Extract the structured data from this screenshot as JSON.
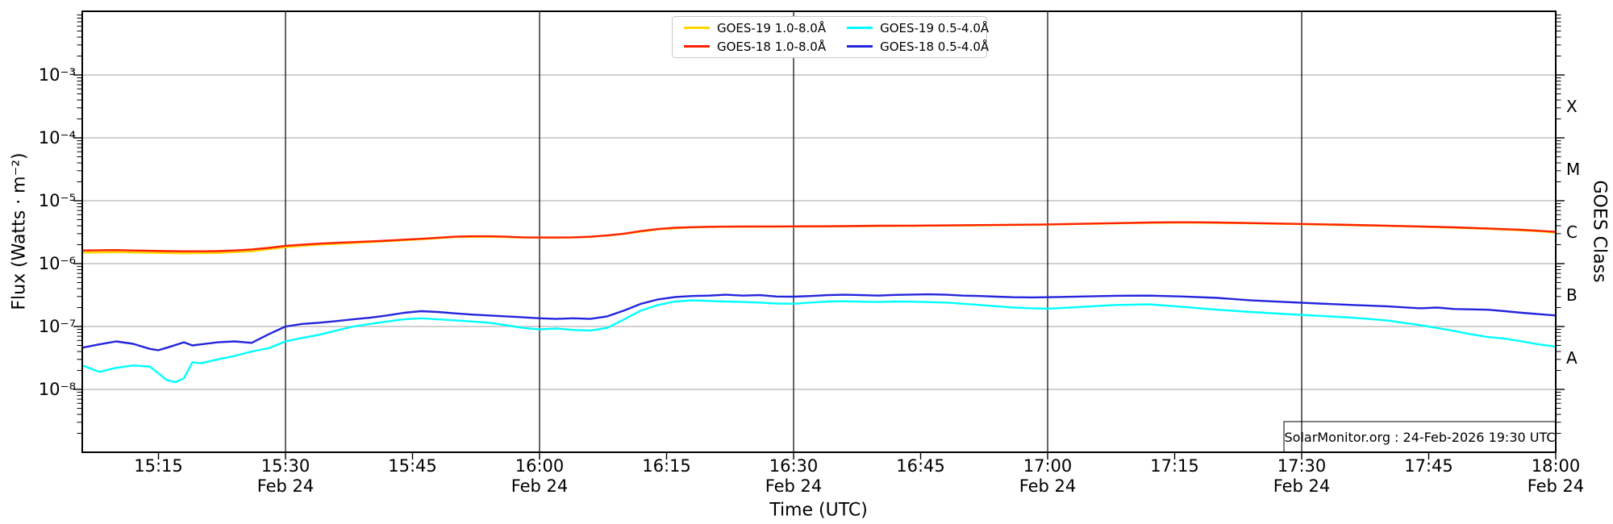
{
  "page": {
    "credit": "SolarMonitor.org : 24-Feb-2026 19:30 UTC"
  },
  "chart_data": {
    "type": "line",
    "title": "",
    "xlabel": "Time (UTC)",
    "ylabel": "Flux (Watts · m⁻²)",
    "right_axis_label": "GOES Class",
    "x_axis": {
      "start": "15:06",
      "end": "18:00",
      "tick_labels": [
        "15:15",
        "15:30",
        "15:45",
        "16:00",
        "16:15",
        "16:30",
        "16:45",
        "17:00",
        "17:15",
        "17:30",
        "17:45",
        "18:00"
      ],
      "date_label": "Feb 24",
      "date_label_under": [
        "15:30",
        "16:00",
        "16:30",
        "17:00",
        "17:30",
        "18:00"
      ],
      "vertical_lines": [
        "15:30",
        "16:00",
        "16:30",
        "17:00",
        "17:30"
      ]
    },
    "y_axis": {
      "scale": "log",
      "min": 1e-09,
      "max": 0.01,
      "tick_values": [
        0.001,
        0.0001,
        1e-05,
        1e-06,
        1e-07,
        1e-08
      ],
      "tick_labels": [
        "10⁻³",
        "10⁻⁴",
        "10⁻⁵",
        "10⁻⁶",
        "10⁻⁷",
        "10⁻⁸"
      ],
      "gridlines": true
    },
    "goes_classes": [
      {
        "letter": "X",
        "center_flux": 0.000316
      },
      {
        "letter": "M",
        "center_flux": 3.16e-05
      },
      {
        "letter": "C",
        "center_flux": 3.16e-06
      },
      {
        "letter": "B",
        "center_flux": 3.16e-07
      },
      {
        "letter": "A",
        "center_flux": 3.16e-08
      }
    ],
    "grid_color": "#b4b4b4",
    "series": [
      {
        "name": "GOES-19 1.0-8.0Å",
        "color": "#ffd400",
        "points": [
          [
            "15:06",
            1.5e-06
          ],
          [
            "15:10",
            1.52e-06
          ],
          [
            "15:14",
            1.49e-06
          ],
          [
            "15:18",
            1.46e-06
          ],
          [
            "15:22",
            1.48e-06
          ],
          [
            "15:26",
            1.57e-06
          ],
          [
            "15:30",
            1.83e-06
          ],
          [
            "15:34",
            2e-06
          ],
          [
            "15:38",
            2.13e-06
          ],
          [
            "15:42",
            2.27e-06
          ],
          [
            "15:46",
            2.44e-06
          ],
          [
            "15:50",
            2.65e-06
          ],
          [
            "15:54",
            2.69e-06
          ],
          [
            "15:58",
            2.6e-06
          ],
          [
            "16:02",
            2.58e-06
          ],
          [
            "16:06",
            2.66e-06
          ],
          [
            "16:10",
            2.97e-06
          ],
          [
            "16:14",
            3.52e-06
          ],
          [
            "16:18",
            3.77e-06
          ],
          [
            "16:22",
            3.85e-06
          ],
          [
            "16:26",
            3.87e-06
          ],
          [
            "16:30",
            3.88e-06
          ],
          [
            "16:34",
            3.9e-06
          ],
          [
            "16:38",
            3.94e-06
          ],
          [
            "16:42",
            3.98e-06
          ],
          [
            "16:46",
            4e-06
          ],
          [
            "16:50",
            4.04e-06
          ],
          [
            "16:54",
            4.09e-06
          ],
          [
            "16:58",
            4.14e-06
          ],
          [
            "17:02",
            4.22e-06
          ],
          [
            "17:06",
            4.32e-06
          ],
          [
            "17:10",
            4.42e-06
          ],
          [
            "17:14",
            4.48e-06
          ],
          [
            "17:18",
            4.48e-06
          ],
          [
            "17:22",
            4.42e-06
          ],
          [
            "17:26",
            4.33e-06
          ],
          [
            "17:30",
            4.23e-06
          ],
          [
            "17:34",
            4.13e-06
          ],
          [
            "17:38",
            4.03e-06
          ],
          [
            "17:42",
            3.92e-06
          ],
          [
            "17:46",
            3.8e-06
          ],
          [
            "17:50",
            3.64e-06
          ],
          [
            "17:54",
            3.48e-06
          ],
          [
            "17:58",
            3.28e-06
          ],
          [
            "18:00",
            3.12e-06
          ]
        ]
      },
      {
        "name": "GOES-18 1.0-8.0Å",
        "color": "#ff2200",
        "points": [
          [
            "15:06",
            1.62e-06
          ],
          [
            "15:08",
            1.63e-06
          ],
          [
            "15:10",
            1.64e-06
          ],
          [
            "15:12",
            1.62e-06
          ],
          [
            "15:14",
            1.6e-06
          ],
          [
            "15:16",
            1.58e-06
          ],
          [
            "15:18",
            1.57e-06
          ],
          [
            "15:20",
            1.57e-06
          ],
          [
            "15:22",
            1.58e-06
          ],
          [
            "15:24",
            1.62e-06
          ],
          [
            "15:26",
            1.68e-06
          ],
          [
            "15:28",
            1.78e-06
          ],
          [
            "15:30",
            1.92e-06
          ],
          [
            "15:32",
            2e-06
          ],
          [
            "15:34",
            2.08e-06
          ],
          [
            "15:36",
            2.14e-06
          ],
          [
            "15:38",
            2.2e-06
          ],
          [
            "15:40",
            2.26e-06
          ],
          [
            "15:42",
            2.32e-06
          ],
          [
            "15:44",
            2.4e-06
          ],
          [
            "15:46",
            2.48e-06
          ],
          [
            "15:48",
            2.58e-06
          ],
          [
            "15:50",
            2.68e-06
          ],
          [
            "15:52",
            2.72e-06
          ],
          [
            "15:54",
            2.72e-06
          ],
          [
            "15:56",
            2.68e-06
          ],
          [
            "15:58",
            2.62e-06
          ],
          [
            "16:00",
            2.6e-06
          ],
          [
            "16:02",
            2.6e-06
          ],
          [
            "16:04",
            2.62e-06
          ],
          [
            "16:06",
            2.68e-06
          ],
          [
            "16:08",
            2.8e-06
          ],
          [
            "16:10",
            3e-06
          ],
          [
            "16:12",
            3.3e-06
          ],
          [
            "16:14",
            3.55e-06
          ],
          [
            "16:16",
            3.72e-06
          ],
          [
            "16:18",
            3.8e-06
          ],
          [
            "16:20",
            3.85e-06
          ],
          [
            "16:24",
            3.9e-06
          ],
          [
            "16:28",
            3.9e-06
          ],
          [
            "16:32",
            3.92e-06
          ],
          [
            "16:36",
            3.95e-06
          ],
          [
            "16:40",
            4e-06
          ],
          [
            "16:44",
            4.02e-06
          ],
          [
            "16:48",
            4.05e-06
          ],
          [
            "16:52",
            4.1e-06
          ],
          [
            "16:56",
            4.15e-06
          ],
          [
            "17:00",
            4.2e-06
          ],
          [
            "17:04",
            4.3e-06
          ],
          [
            "17:08",
            4.4e-06
          ],
          [
            "17:12",
            4.5e-06
          ],
          [
            "17:16",
            4.55e-06
          ],
          [
            "17:20",
            4.5e-06
          ],
          [
            "17:24",
            4.42e-06
          ],
          [
            "17:28",
            4.32e-06
          ],
          [
            "17:32",
            4.22e-06
          ],
          [
            "17:36",
            4.12e-06
          ],
          [
            "17:40",
            4.02e-06
          ],
          [
            "17:44",
            3.9e-06
          ],
          [
            "17:48",
            3.78e-06
          ],
          [
            "17:52",
            3.62e-06
          ],
          [
            "17:56",
            3.45e-06
          ],
          [
            "18:00",
            3.2e-06
          ]
        ]
      },
      {
        "name": "GOES-19 0.5-4.0Å",
        "color": "#00ffff",
        "points": [
          [
            "15:06",
            2.4e-08
          ],
          [
            "15:08",
            1.9e-08
          ],
          [
            "15:10",
            2.2e-08
          ],
          [
            "15:12",
            2.4e-08
          ],
          [
            "15:14",
            2.3e-08
          ],
          [
            "15:16",
            1.4e-08
          ],
          [
            "15:17",
            1.3e-08
          ],
          [
            "15:18",
            1.5e-08
          ],
          [
            "15:19",
            2.7e-08
          ],
          [
            "15:20",
            2.6e-08
          ],
          [
            "15:22",
            3e-08
          ],
          [
            "15:24",
            3.4e-08
          ],
          [
            "15:26",
            4e-08
          ],
          [
            "15:28",
            4.5e-08
          ],
          [
            "15:30",
            5.8e-08
          ],
          [
            "15:32",
            6.6e-08
          ],
          [
            "15:34",
            7.4e-08
          ],
          [
            "15:36",
            8.6e-08
          ],
          [
            "15:38",
            1e-07
          ],
          [
            "15:40",
            1.1e-07
          ],
          [
            "15:42",
            1.2e-07
          ],
          [
            "15:44",
            1.3e-07
          ],
          [
            "15:46",
            1.35e-07
          ],
          [
            "15:48",
            1.3e-07
          ],
          [
            "15:50",
            1.25e-07
          ],
          [
            "15:52",
            1.2e-07
          ],
          [
            "15:54",
            1.15e-07
          ],
          [
            "15:56",
            1.05e-07
          ],
          [
            "15:58",
            9.5e-08
          ],
          [
            "16:00",
            9e-08
          ],
          [
            "16:02",
            9.3e-08
          ],
          [
            "16:04",
            8.8e-08
          ],
          [
            "16:06",
            8.6e-08
          ],
          [
            "16:08",
            9.5e-08
          ],
          [
            "16:10",
            1.3e-07
          ],
          [
            "16:12",
            1.8e-07
          ],
          [
            "16:14",
            2.2e-07
          ],
          [
            "16:16",
            2.5e-07
          ],
          [
            "16:18",
            2.6e-07
          ],
          [
            "16:20",
            2.55e-07
          ],
          [
            "16:22",
            2.5e-07
          ],
          [
            "16:24",
            2.45e-07
          ],
          [
            "16:26",
            2.4e-07
          ],
          [
            "16:28",
            2.32e-07
          ],
          [
            "16:30",
            2.3e-07
          ],
          [
            "16:32",
            2.4e-07
          ],
          [
            "16:34",
            2.5e-07
          ],
          [
            "16:36",
            2.52e-07
          ],
          [
            "16:38",
            2.48e-07
          ],
          [
            "16:40",
            2.45e-07
          ],
          [
            "16:42",
            2.5e-07
          ],
          [
            "16:44",
            2.48e-07
          ],
          [
            "16:46",
            2.44e-07
          ],
          [
            "16:48",
            2.4e-07
          ],
          [
            "16:50",
            2.3e-07
          ],
          [
            "16:52",
            2.2e-07
          ],
          [
            "16:54",
            2.1e-07
          ],
          [
            "16:56",
            2e-07
          ],
          [
            "16:58",
            1.95e-07
          ],
          [
            "17:00",
            1.92e-07
          ],
          [
            "17:04",
            2.05e-07
          ],
          [
            "17:08",
            2.2e-07
          ],
          [
            "17:12",
            2.25e-07
          ],
          [
            "17:16",
            2.05e-07
          ],
          [
            "17:20",
            1.85e-07
          ],
          [
            "17:24",
            1.7e-07
          ],
          [
            "17:28",
            1.58e-07
          ],
          [
            "17:32",
            1.48e-07
          ],
          [
            "17:36",
            1.38e-07
          ],
          [
            "17:40",
            1.25e-07
          ],
          [
            "17:44",
            1.05e-07
          ],
          [
            "17:48",
            8.5e-08
          ],
          [
            "17:50",
            7.5e-08
          ],
          [
            "17:52",
            6.8e-08
          ],
          [
            "17:54",
            6.4e-08
          ],
          [
            "17:56",
            5.8e-08
          ],
          [
            "17:58",
            5.2e-08
          ],
          [
            "18:00",
            4.8e-08
          ]
        ]
      },
      {
        "name": "GOES-18 0.5-4.0Å",
        "color": "#2424dd",
        "points": [
          [
            "15:06",
            4.6e-08
          ],
          [
            "15:08",
            5.2e-08
          ],
          [
            "15:10",
            5.8e-08
          ],
          [
            "15:12",
            5.3e-08
          ],
          [
            "15:14",
            4.4e-08
          ],
          [
            "15:15",
            4.2e-08
          ],
          [
            "15:16",
            4.6e-08
          ],
          [
            "15:18",
            5.6e-08
          ],
          [
            "15:19",
            5e-08
          ],
          [
            "15:20",
            5.2e-08
          ],
          [
            "15:22",
            5.6e-08
          ],
          [
            "15:24",
            5.8e-08
          ],
          [
            "15:26",
            5.5e-08
          ],
          [
            "15:28",
            7.5e-08
          ],
          [
            "15:30",
            1e-07
          ],
          [
            "15:32",
            1.1e-07
          ],
          [
            "15:34",
            1.15e-07
          ],
          [
            "15:36",
            1.22e-07
          ],
          [
            "15:38",
            1.3e-07
          ],
          [
            "15:40",
            1.38e-07
          ],
          [
            "15:42",
            1.5e-07
          ],
          [
            "15:44",
            1.65e-07
          ],
          [
            "15:46",
            1.75e-07
          ],
          [
            "15:48",
            1.7e-07
          ],
          [
            "15:50",
            1.62e-07
          ],
          [
            "15:52",
            1.55e-07
          ],
          [
            "15:54",
            1.5e-07
          ],
          [
            "15:56",
            1.45e-07
          ],
          [
            "15:58",
            1.4e-07
          ],
          [
            "16:00",
            1.35e-07
          ],
          [
            "16:02",
            1.32e-07
          ],
          [
            "16:04",
            1.35e-07
          ],
          [
            "16:06",
            1.32e-07
          ],
          [
            "16:08",
            1.45e-07
          ],
          [
            "16:10",
            1.8e-07
          ],
          [
            "16:12",
            2.3e-07
          ],
          [
            "16:14",
            2.7e-07
          ],
          [
            "16:16",
            2.95e-07
          ],
          [
            "16:18",
            3.05e-07
          ],
          [
            "16:20",
            3.1e-07
          ],
          [
            "16:22",
            3.2e-07
          ],
          [
            "16:24",
            3.1e-07
          ],
          [
            "16:26",
            3.15e-07
          ],
          [
            "16:28",
            3e-07
          ],
          [
            "16:30",
            2.98e-07
          ],
          [
            "16:32",
            3.05e-07
          ],
          [
            "16:34",
            3.15e-07
          ],
          [
            "16:36",
            3.2e-07
          ],
          [
            "16:38",
            3.15e-07
          ],
          [
            "16:40",
            3.1e-07
          ],
          [
            "16:42",
            3.18e-07
          ],
          [
            "16:44",
            3.22e-07
          ],
          [
            "16:46",
            3.25e-07
          ],
          [
            "16:48",
            3.2e-07
          ],
          [
            "16:50",
            3.1e-07
          ],
          [
            "16:52",
            3.05e-07
          ],
          [
            "16:54",
            2.98e-07
          ],
          [
            "16:56",
            2.92e-07
          ],
          [
            "16:58",
            2.9e-07
          ],
          [
            "17:00",
            2.92e-07
          ],
          [
            "17:04",
            3e-07
          ],
          [
            "17:08",
            3.08e-07
          ],
          [
            "17:12",
            3.1e-07
          ],
          [
            "17:16",
            3e-07
          ],
          [
            "17:20",
            2.85e-07
          ],
          [
            "17:24",
            2.6e-07
          ],
          [
            "17:28",
            2.45e-07
          ],
          [
            "17:32",
            2.32e-07
          ],
          [
            "17:36",
            2.2e-07
          ],
          [
            "17:40",
            2.1e-07
          ],
          [
            "17:44",
            1.95e-07
          ],
          [
            "17:46",
            2e-07
          ],
          [
            "17:48",
            1.9e-07
          ],
          [
            "17:52",
            1.85e-07
          ],
          [
            "17:54",
            1.75e-07
          ],
          [
            "17:56",
            1.65e-07
          ],
          [
            "18:00",
            1.5e-07
          ]
        ]
      }
    ],
    "legend": {
      "display_order": [
        0,
        2,
        1,
        3
      ]
    }
  }
}
